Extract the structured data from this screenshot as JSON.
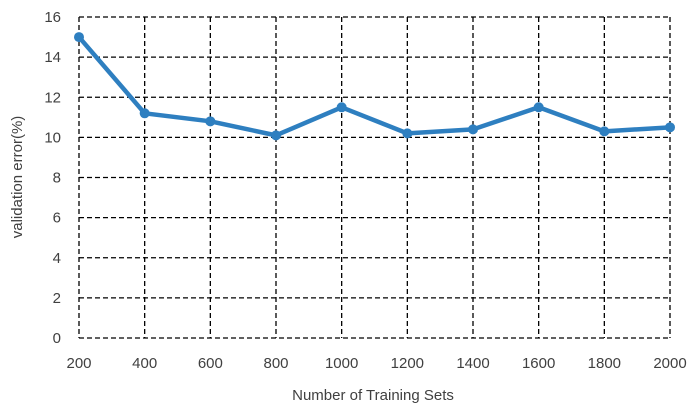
{
  "chart_data": {
    "type": "line",
    "title": "",
    "xlabel": "Number of Training Sets",
    "ylabel": "validation error(%)",
    "x": [
      200,
      400,
      600,
      800,
      1000,
      1200,
      1400,
      1600,
      1800,
      2000
    ],
    "x_tick_labels": [
      "200",
      "400",
      "600",
      "800",
      "1000",
      "1200",
      "1400",
      "1600",
      "1800",
      "2000"
    ],
    "y_tick_labels": [
      "0",
      "2",
      "4",
      "6",
      "8",
      "10",
      "12",
      "14",
      "16"
    ],
    "xlim": [
      200,
      2000
    ],
    "ylim": [
      0,
      16
    ],
    "y_ticks": [
      0,
      2,
      4,
      6,
      8,
      10,
      12,
      14,
      16
    ],
    "grid": "on (dashed)",
    "legend": "none",
    "series": [
      {
        "values": [
          15.0,
          11.2,
          10.8,
          10.1,
          11.5,
          10.2,
          10.4,
          11.5,
          10.3,
          10.5
        ],
        "color": "#2e7fc0"
      }
    ]
  }
}
